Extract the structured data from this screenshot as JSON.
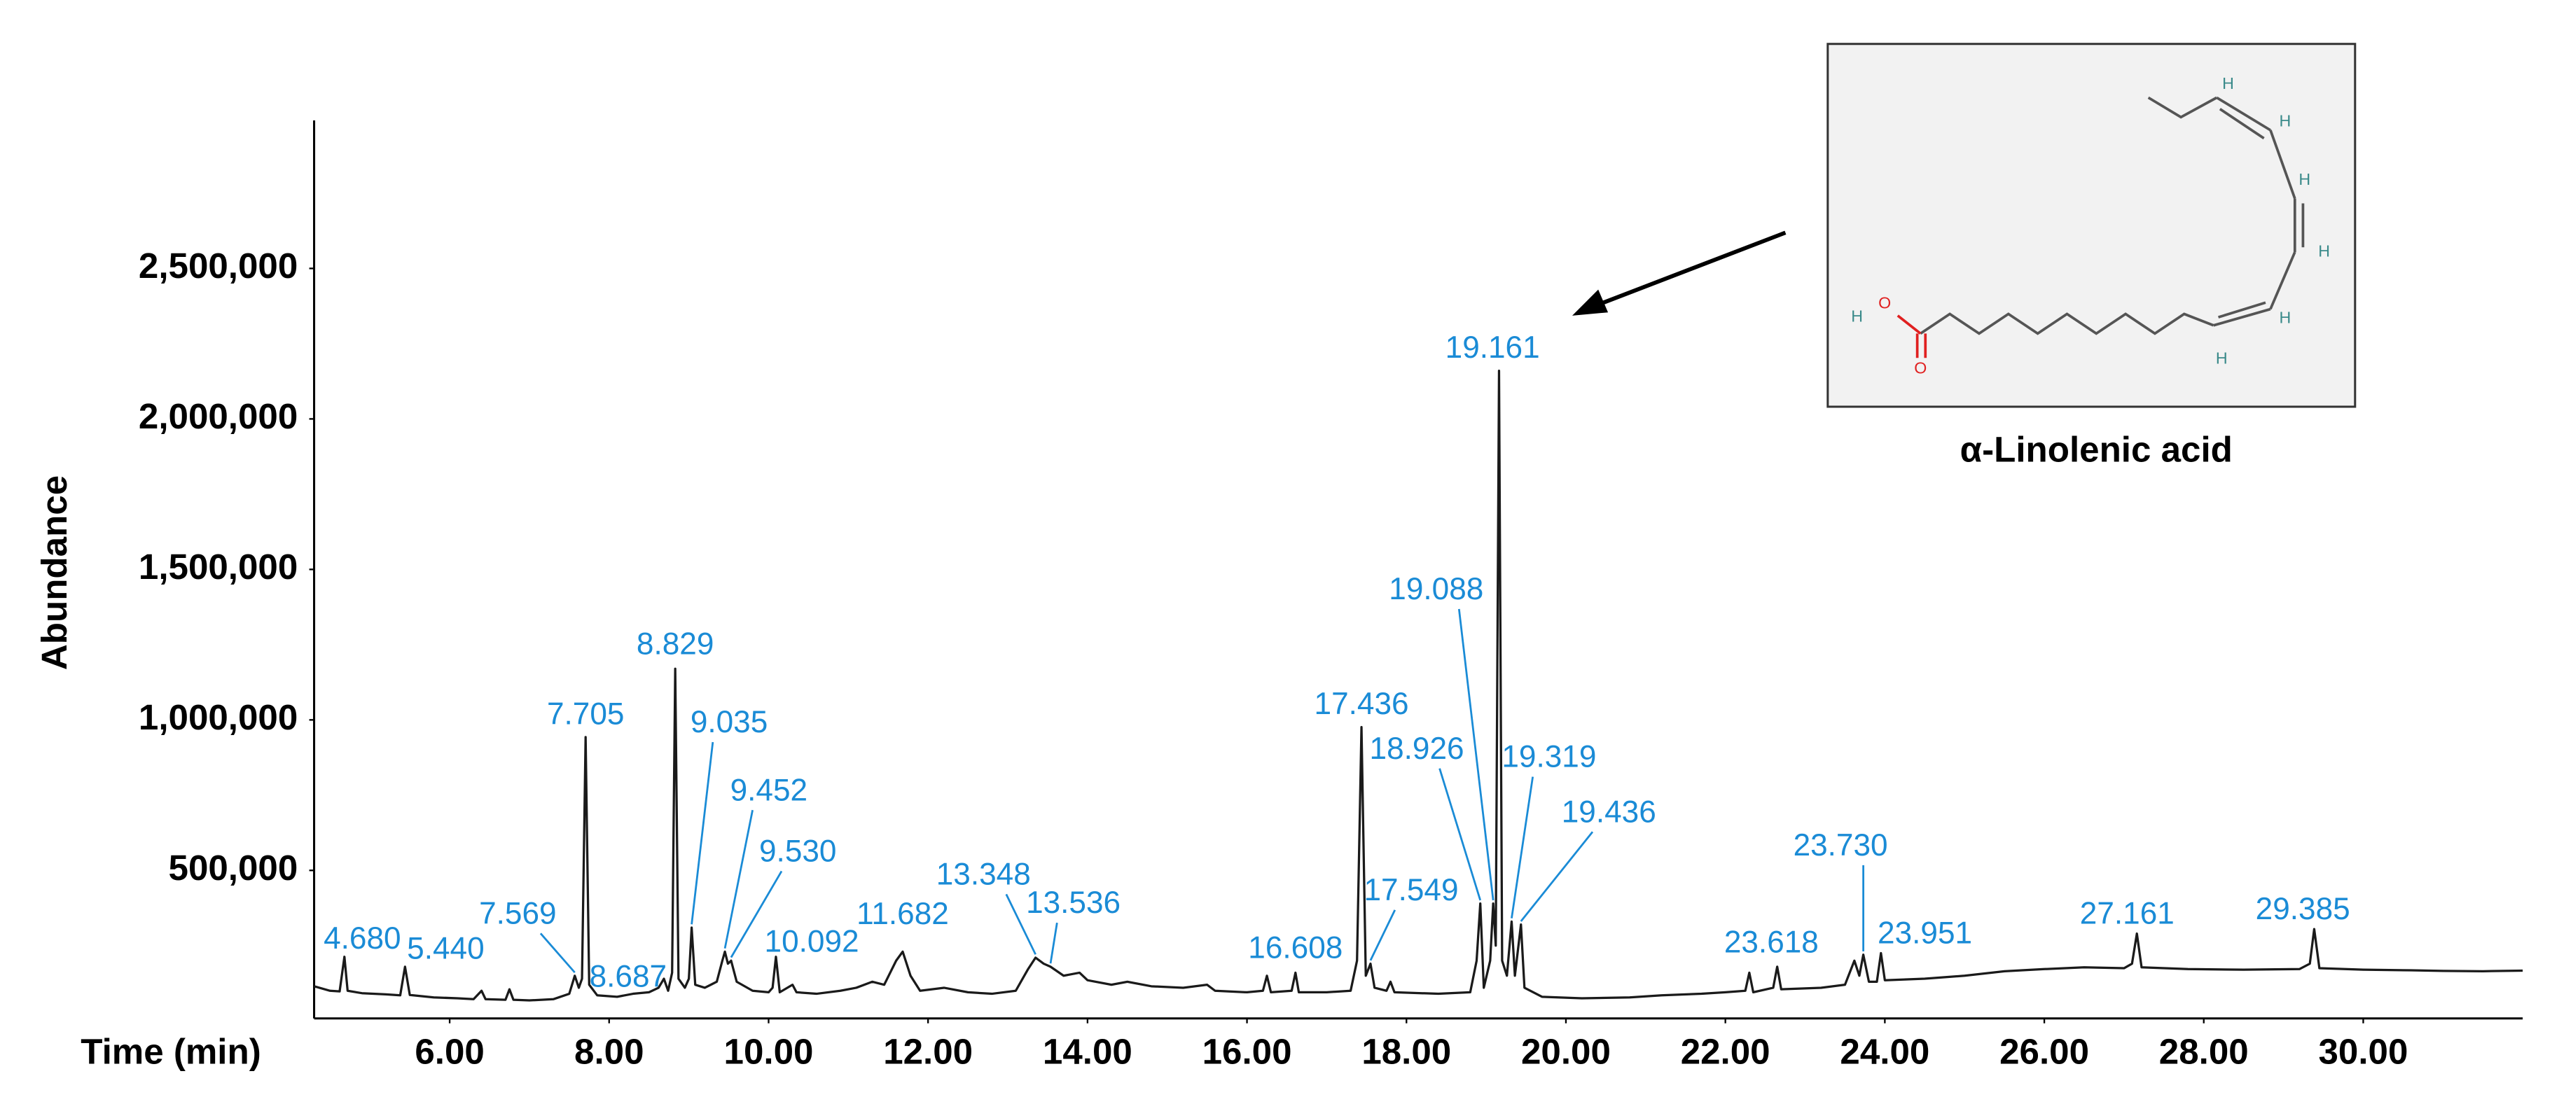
{
  "chart_data": {
    "type": "line",
    "x_label": "Time (min)",
    "y_label": "Abundance",
    "color": "#1a1a1a",
    "label_color": "#1a8bd6",
    "grid": false,
    "xlim": [
      4.3,
      32
    ],
    "ylim": [
      0,
      3000000
    ],
    "xticks": [
      {
        "value": 6,
        "label": "6.00"
      },
      {
        "value": 8,
        "label": "8.00"
      },
      {
        "value": 10,
        "label": "10.00"
      },
      {
        "value": 12,
        "label": "12.00"
      },
      {
        "value": 14,
        "label": "14.00"
      },
      {
        "value": 16,
        "label": "16.00"
      },
      {
        "value": 18,
        "label": "18.00"
      },
      {
        "value": 20,
        "label": "20.00"
      },
      {
        "value": 22,
        "label": "22.00"
      },
      {
        "value": 24,
        "label": "24.00"
      },
      {
        "value": 26,
        "label": "26.00"
      },
      {
        "value": 28,
        "label": "28.00"
      },
      {
        "value": 30,
        "label": "30.00"
      }
    ],
    "yticks": [
      {
        "value": 500000,
        "label": "500,000"
      },
      {
        "value": 1000000,
        "label": "1,000,000"
      },
      {
        "value": 1500000,
        "label": "1,500,000"
      },
      {
        "value": 2000000,
        "label": "2,000,000"
      },
      {
        "value": 2500000,
        "label": "2,500,000"
      }
    ],
    "x": [
      4.3,
      4.5,
      4.62,
      4.68,
      4.72,
      4.9,
      5.2,
      5.38,
      5.44,
      5.5,
      5.8,
      6.1,
      6.3,
      6.4,
      6.45,
      6.7,
      6.75,
      6.8,
      7.0,
      7.3,
      7.5,
      7.569,
      7.62,
      7.66,
      7.705,
      7.75,
      7.85,
      8.1,
      8.3,
      8.5,
      8.62,
      8.687,
      8.74,
      8.79,
      8.829,
      8.87,
      8.95,
      9.0,
      9.035,
      9.08,
      9.2,
      9.35,
      9.42,
      9.452,
      9.49,
      9.53,
      9.6,
      9.8,
      10.0,
      10.05,
      10.092,
      10.14,
      10.3,
      10.35,
      10.6,
      10.9,
      11.1,
      11.3,
      11.45,
      11.6,
      11.682,
      11.78,
      11.9,
      12.2,
      12.5,
      12.8,
      13.1,
      13.25,
      13.348,
      13.45,
      13.536,
      13.7,
      13.9,
      14.0,
      14.3,
      14.5,
      14.8,
      15.2,
      15.5,
      15.6,
      16.0,
      16.2,
      16.25,
      16.3,
      16.56,
      16.608,
      16.65,
      17.0,
      17.3,
      17.38,
      17.436,
      17.49,
      17.549,
      17.6,
      17.75,
      17.8,
      17.85,
      18.4,
      18.8,
      18.88,
      18.926,
      18.97,
      19.05,
      19.088,
      19.12,
      19.161,
      19.2,
      19.26,
      19.319,
      19.36,
      19.436,
      19.48,
      19.7,
      20.2,
      20.8,
      21.2,
      21.7,
      22.0,
      22.25,
      22.3,
      22.35,
      22.6,
      22.65,
      22.7,
      23.2,
      23.5,
      23.618,
      23.68,
      23.73,
      23.8,
      23.9,
      23.951,
      24.0,
      24.5,
      25.0,
      25.5,
      26.0,
      26.5,
      27.0,
      27.1,
      27.161,
      27.22,
      27.8,
      28.5,
      29.2,
      29.33,
      29.385,
      29.45,
      30.0,
      30.6,
      31.0,
      31.5,
      32
    ],
    "values": [
      115000,
      100000,
      98000,
      213000,
      100000,
      92000,
      88000,
      85000,
      180000,
      86000,
      78000,
      75000,
      72000,
      100000,
      72000,
      70000,
      105000,
      70000,
      68000,
      72000,
      90000,
      150000,
      110000,
      140000,
      943000,
      120000,
      85000,
      80000,
      90000,
      95000,
      110000,
      140000,
      100000,
      160000,
      1170000,
      140000,
      110000,
      140000,
      310000,
      120000,
      110000,
      130000,
      200000,
      230000,
      190000,
      200000,
      130000,
      100000,
      95000,
      110000,
      213000,
      95000,
      120000,
      95000,
      90000,
      100000,
      110000,
      130000,
      120000,
      200000,
      230000,
      150000,
      100000,
      110000,
      95000,
      90000,
      100000,
      170000,
      210000,
      190000,
      180000,
      150000,
      160000,
      135000,
      120000,
      130000,
      115000,
      110000,
      120000,
      100000,
      95000,
      100000,
      150000,
      95000,
      100000,
      160000,
      95000,
      95000,
      100000,
      200000,
      976000,
      150000,
      190000,
      110000,
      100000,
      130000,
      95000,
      90000,
      95000,
      200000,
      390000,
      110000,
      200000,
      390000,
      250000,
      2160000,
      200000,
      150000,
      330000,
      150000,
      320000,
      110000,
      80000,
      75000,
      78000,
      85000,
      90000,
      95000,
      100000,
      160000,
      95000,
      110000,
      180000,
      105000,
      110000,
      120000,
      200000,
      150000,
      220000,
      130000,
      130000,
      225000,
      135000,
      140000,
      150000,
      165000,
      172000,
      178000,
      175000,
      190000,
      290000,
      178000,
      172000,
      170000,
      172000,
      190000,
      305000,
      175000,
      170000,
      168000,
      166000,
      165000,
      167000
    ],
    "peaks": {
      "x": [
        4.68,
        5.44,
        7.569,
        7.705,
        8.687,
        8.829,
        9.035,
        9.452,
        9.53,
        10.092,
        11.682,
        13.348,
        13.536,
        16.608,
        17.436,
        17.549,
        18.926,
        19.088,
        19.161,
        19.319,
        19.436,
        23.618,
        23.73,
        23.951,
        27.161,
        29.385
      ],
      "values": [
        213000,
        180000,
        150000,
        943000,
        140000,
        1170000,
        310000,
        230000,
        200000,
        213000,
        230000,
        210000,
        180000,
        160000,
        976000,
        190000,
        390000,
        390000,
        2160000,
        330000,
        320000,
        200000,
        220000,
        225000,
        290000,
        305000
      ],
      "labels": [
        "4.680",
        "5.440",
        "7.569",
        "7.705",
        "8.687",
        "8.829",
        "9.035",
        "9.452",
        "9.530",
        "10.092",
        "11.682",
        "13.348",
        "13.536",
        "16.608",
        "17.436",
        "17.549",
        "18.926",
        "19.088",
        "19.161",
        "19.319",
        "19.436",
        "23.618",
        "23.730",
        "23.951",
        "27.161",
        "29.385"
      ]
    },
    "inset_caption": "α-Linolenic acid",
    "structure_atoms": [
      "H",
      "O",
      "O",
      "H",
      "H",
      "H",
      "H",
      "H",
      "H"
    ]
  }
}
